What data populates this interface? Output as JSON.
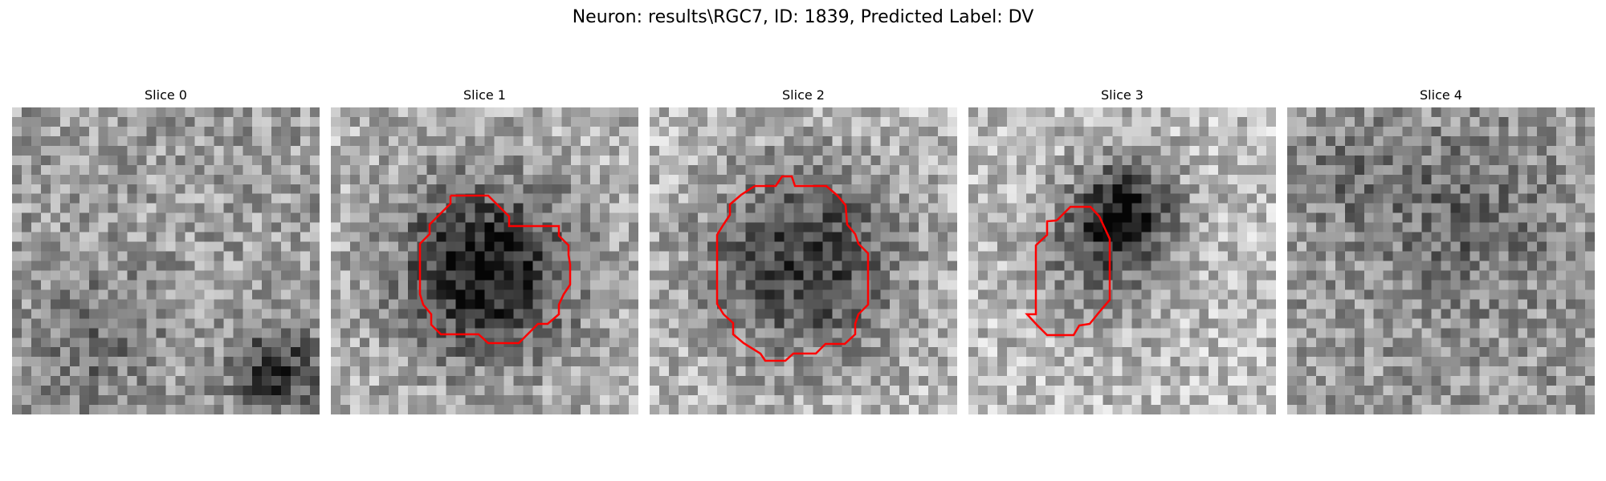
{
  "figure": {
    "title": "Neuron: results\\RGC7, ID: 1839, Predicted Label: DV"
  },
  "contour_color": "#ff0000",
  "panels": [
    {
      "title": "Slice 0",
      "has_contour": false,
      "dark_blob": "none"
    },
    {
      "title": "Slice 1",
      "has_contour": true,
      "dark_blob": "center"
    },
    {
      "title": "Slice 2",
      "has_contour": true,
      "dark_blob": "center"
    },
    {
      "title": "Slice 3",
      "has_contour": true,
      "dark_blob": "upper-right of contour"
    },
    {
      "title": "Slice 4",
      "has_contour": false,
      "dark_blob": "none"
    }
  ]
}
